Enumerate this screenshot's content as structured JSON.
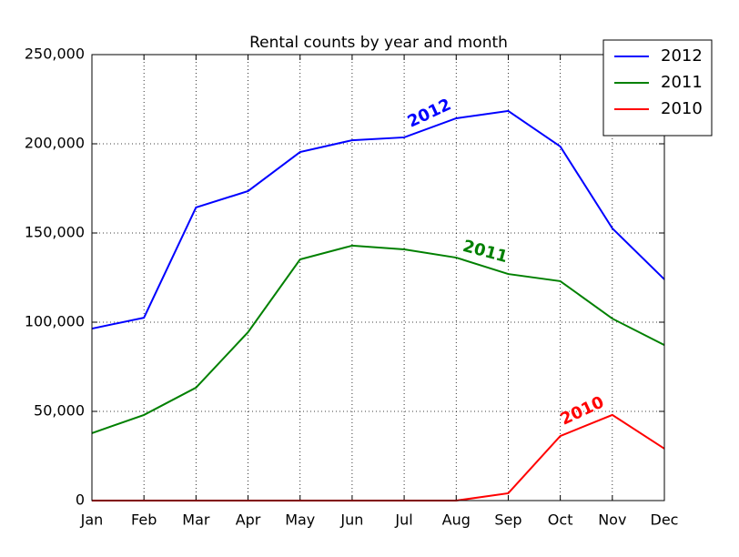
{
  "chart_data": {
    "type": "line",
    "title": "Rental counts by year and month",
    "categories": [
      "Jan",
      "Feb",
      "Mar",
      "Apr",
      "May",
      "Jun",
      "Jul",
      "Aug",
      "Sep",
      "Oct",
      "Nov",
      "Dec"
    ],
    "series": [
      {
        "name": "2012",
        "color": "#0000ff",
        "values": [
          96400,
          102500,
          164300,
          173500,
          195400,
          202000,
          203600,
          214300,
          218400,
          198500,
          152600,
          124000
        ]
      },
      {
        "name": "2011",
        "color": "#008000",
        "values": [
          37800,
          48000,
          63300,
          94400,
          135200,
          142900,
          140800,
          136200,
          127000,
          123000,
          102000,
          87200
        ]
      },
      {
        "name": "2010",
        "color": "#ff0000",
        "values": [
          0,
          0,
          0,
          0,
          0,
          0,
          0,
          0,
          4100,
          36200,
          48000,
          29100
        ]
      }
    ],
    "ylim": [
      0,
      250000
    ],
    "yticks": [
      0,
      {
        "value": 50000,
        "label": "50,000"
      },
      {
        "value": 100000,
        "label": "100,000"
      },
      {
        "value": 150000,
        "label": "150,000"
      },
      {
        "value": 200000,
        "label": "200,000"
      },
      {
        "value": 250000,
        "label": "250,000"
      }
    ],
    "grid": true,
    "legend": "upper right"
  }
}
